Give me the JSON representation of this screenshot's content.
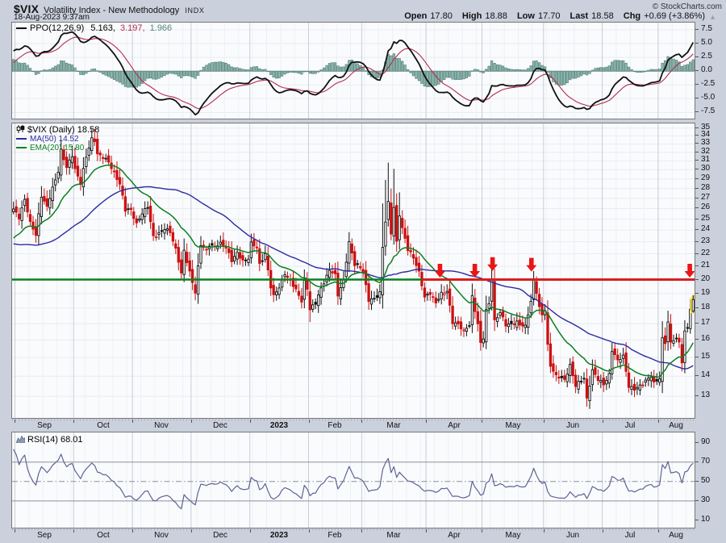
{
  "header": {
    "symbol": "$VIX",
    "name": "Volatility Index - New Methodology",
    "exchange": "INDX",
    "datetime": "18-Aug-2023 9:37am",
    "copyright": "© StockCharts.com",
    "quote": {
      "open_label": "Open",
      "open": "17.80",
      "high_label": "High",
      "high": "18.88",
      "low_label": "Low",
      "low": "17.70",
      "last_label": "Last",
      "last": "18.58",
      "chg_label": "Chg",
      "chg": "+0.69 (+3.86%)",
      "direction_icon": "▲"
    }
  },
  "panels": {
    "ppo": {
      "label": "PPO(12,26,9)",
      "values": [
        "5.163,",
        "3.197,",
        "1.966"
      ]
    },
    "main": {
      "legend1": "$VIX (Daily) 18.58",
      "legend2": "MA(50) 14.52",
      "legend3": "EMA(20) 15.80"
    },
    "rsi": {
      "legend": "RSI(14) 68.01"
    }
  },
  "colors": {
    "background": "#cad0dc",
    "plot_bg": "#fafbfd",
    "grid_minor": "#eef0f5",
    "grid_month": "#c9cdd9",
    "grid_h": "#e9ebf1",
    "up_candle": "#111111",
    "down_candle": "#cc1111",
    "candle_fill": "#ffffff",
    "ma50": "#2b2ba0",
    "ema20": "#0b8020",
    "support_line": "#0b8020",
    "resistance_line": "#d81f1f",
    "arrow": "#ea1515",
    "ppo_line": "#111111",
    "ppo_signal": "#b52d4d",
    "ppo_hist_fill": "#8fb5ad",
    "ppo_hist_stroke": "#55857c",
    "rsi_line": "#5f6394",
    "level_line": "#8a8f9a",
    "zero_line": "#9aa0ac",
    "tick_mark": "#555555",
    "highlight": "#ffe34d",
    "chg_triangle": "#97a3b4"
  },
  "chart_data": {
    "type": "candlestick",
    "title": "$VIX (Daily)",
    "y_scale": "log",
    "y_top": 35.6,
    "y_bot": 12.0,
    "y_ticks": [
      35,
      34,
      33,
      32,
      31,
      30,
      29,
      28,
      27,
      26,
      25,
      24,
      23,
      22,
      21,
      20,
      19,
      18,
      17,
      16,
      15,
      14,
      13
    ],
    "x_tick_labels": [
      "Sep",
      "Oct",
      "Nov",
      "Dec",
      "2023",
      "Feb",
      "Mar",
      "Apr",
      "May",
      "Jun",
      "Jul",
      "Aug"
    ],
    "year_bold_index": 4,
    "n_days": 244,
    "month_start_days": [
      1,
      22,
      43,
      64,
      85,
      106,
      125,
      148,
      168,
      190,
      211,
      231
    ],
    "price": {
      "pre_waypoints": [
        [
          -50,
          27.5
        ],
        [
          -40,
          24.0
        ],
        [
          -30,
          21.8
        ],
        [
          -22,
          19.7
        ],
        [
          -15,
          20.9
        ],
        [
          -8,
          23.0
        ],
        [
          -3,
          24.2
        ],
        [
          -1,
          25.6
        ]
      ],
      "close_waypoints": [
        [
          0,
          25.9
        ],
        [
          2,
          25.2
        ],
        [
          4,
          26.9
        ],
        [
          6,
          24.6
        ],
        [
          8,
          23.6
        ],
        [
          10,
          27.3
        ],
        [
          12,
          26.1
        ],
        [
          14,
          28.0
        ],
        [
          16,
          29.9
        ],
        [
          17,
          32.3
        ],
        [
          19,
          30.2
        ],
        [
          21,
          31.6
        ],
        [
          22,
          30.1
        ],
        [
          24,
          28.6
        ],
        [
          26,
          31.4
        ],
        [
          28,
          33.6
        ],
        [
          29,
          33.5
        ],
        [
          30,
          31.9
        ],
        [
          32,
          31.4
        ],
        [
          34,
          30.8
        ],
        [
          36,
          29.7
        ],
        [
          38,
          28.5
        ],
        [
          40,
          25.8
        ],
        [
          42,
          25.9
        ],
        [
          44,
          24.6
        ],
        [
          46,
          25.5
        ],
        [
          48,
          26.1
        ],
        [
          50,
          23.5
        ],
        [
          52,
          23.7
        ],
        [
          54,
          24.1
        ],
        [
          56,
          23.9
        ],
        [
          58,
          22.4
        ],
        [
          60,
          20.4
        ],
        [
          61,
          22.2
        ],
        [
          63,
          20.6
        ],
        [
          65,
          19.1
        ],
        [
          67,
          22.7
        ],
        [
          69,
          22.3
        ],
        [
          70,
          22.8
        ],
        [
          72,
          22.6
        ],
        [
          74,
          22.8
        ],
        [
          76,
          22.6
        ],
        [
          78,
          21.5
        ],
        [
          80,
          22.0
        ],
        [
          82,
          21.4
        ],
        [
          84,
          21.7
        ],
        [
          85,
          22.9
        ],
        [
          87,
          22.5
        ],
        [
          88,
          21.1
        ],
        [
          90,
          22.0
        ],
        [
          92,
          19.5
        ],
        [
          93,
          18.8
        ],
        [
          95,
          19.4
        ],
        [
          97,
          20.5
        ],
        [
          99,
          19.9
        ],
        [
          101,
          19.2
        ],
        [
          103,
          18.5
        ],
        [
          104,
          19.9
        ],
        [
          105,
          19.4
        ],
        [
          106,
          17.9
        ],
        [
          108,
          18.3
        ],
        [
          110,
          19.4
        ],
        [
          113,
          20.7
        ],
        [
          115,
          20.3
        ],
        [
          116,
          18.9
        ],
        [
          118,
          20.0
        ],
        [
          120,
          22.9
        ],
        [
          122,
          21.1
        ],
        [
          124,
          21.0
        ],
        [
          125,
          20.6
        ],
        [
          127,
          18.5
        ],
        [
          129,
          18.6
        ],
        [
          131,
          19.1
        ],
        [
          132,
          22.6
        ],
        [
          133,
          24.8
        ],
        [
          134,
          26.5
        ],
        [
          135,
          23.7
        ],
        [
          136,
          26.1
        ],
        [
          137,
          23.0
        ],
        [
          138,
          25.5
        ],
        [
          139,
          24.2
        ],
        [
          141,
          22.3
        ],
        [
          143,
          21.7
        ],
        [
          145,
          20.6
        ],
        [
          147,
          18.7
        ],
        [
          149,
          19.0
        ],
        [
          151,
          18.4
        ],
        [
          153,
          19.0
        ],
        [
          155,
          19.1
        ],
        [
          157,
          17.1
        ],
        [
          159,
          17.0
        ],
        [
          161,
          16.5
        ],
        [
          163,
          16.9
        ],
        [
          164,
          18.8
        ],
        [
          166,
          17.0
        ],
        [
          167,
          15.8
        ],
        [
          168,
          16.1
        ],
        [
          169,
          17.8
        ],
        [
          170,
          18.3
        ],
        [
          171,
          20.1
        ],
        [
          172,
          17.2
        ],
        [
          174,
          17.7
        ],
        [
          176,
          16.9
        ],
        [
          178,
          17.0
        ],
        [
          180,
          17.1
        ],
        [
          181,
          16.9
        ],
        [
          183,
          16.8
        ],
        [
          185,
          18.5
        ],
        [
          186,
          20.0
        ],
        [
          187,
          19.1
        ],
        [
          188,
          18.0
        ],
        [
          189,
          17.5
        ],
        [
          190,
          17.9
        ],
        [
          191,
          15.7
        ],
        [
          192,
          14.6
        ],
        [
          194,
          14.0
        ],
        [
          197,
          13.8
        ],
        [
          199,
          14.6
        ],
        [
          201,
          13.5
        ],
        [
          204,
          13.9
        ],
        [
          205,
          12.9
        ],
        [
          207,
          14.3
        ],
        [
          209,
          13.8
        ],
        [
          211,
          13.6
        ],
        [
          213,
          14.1
        ],
        [
          214,
          15.4
        ],
        [
          216,
          14.8
        ],
        [
          218,
          15.1
        ],
        [
          220,
          13.5
        ],
        [
          222,
          13.3
        ],
        [
          224,
          13.5
        ],
        [
          226,
          13.8
        ],
        [
          228,
          14.0
        ],
        [
          229,
          13.6
        ],
        [
          231,
          13.9
        ],
        [
          232,
          16.1
        ],
        [
          233,
          15.9
        ],
        [
          234,
          17.1
        ],
        [
          235,
          15.8
        ],
        [
          236,
          16.0
        ],
        [
          237,
          16.0
        ],
        [
          238,
          15.9
        ],
        [
          239,
          14.8
        ],
        [
          240,
          16.5
        ],
        [
          241,
          16.8
        ],
        [
          242,
          17.9
        ],
        [
          243,
          18.58
        ]
      ],
      "high_overrides": [
        [
          17,
          33.2
        ],
        [
          21,
          32.8
        ],
        [
          28,
          34.5
        ],
        [
          29,
          34.9
        ],
        [
          132,
          26.5
        ],
        [
          133,
          28.9
        ],
        [
          134,
          30.8
        ],
        [
          135,
          28.0
        ],
        [
          136,
          30.1
        ],
        [
          137,
          26.8
        ],
        [
          138,
          27.6
        ],
        [
          171,
          21.3
        ],
        [
          242,
          18.3
        ]
      ],
      "low_overrides": [
        [
          65,
          18.9
        ],
        [
          106,
          17.1
        ],
        [
          157,
          16.8
        ],
        [
          205,
          12.7
        ],
        [
          239,
          14.5
        ]
      ],
      "last_ohlc": {
        "open": 17.8,
        "high": 18.88,
        "low": 17.7,
        "close": 18.58
      }
    },
    "overlays": [
      {
        "name": "MA(50)",
        "type": "sma",
        "period": 50,
        "last": 14.52
      },
      {
        "name": "EMA(20)",
        "type": "ema",
        "period": 20,
        "last": 15.8
      }
    ],
    "hlines": [
      {
        "value": 20,
        "x_from": 0.0,
        "x_to": 0.601,
        "color_key": "support_line"
      },
      {
        "value": 20,
        "x_from": 0.601,
        "x_to": 1.0,
        "color_key": "resistance_line"
      }
    ],
    "arrows": [
      {
        "x_frac": 0.627,
        "tip_value": 20.15
      },
      {
        "x_frac": 0.678,
        "tip_value": 20.15
      },
      {
        "x_frac": 0.704,
        "tip_value": 20.65
      },
      {
        "x_frac": 0.761,
        "tip_value": 20.6
      },
      {
        "x_frac": 0.993,
        "tip_value": 20.15
      }
    ],
    "indicators": {
      "ppo": {
        "label": "PPO(12,26,9)",
        "params": [
          12,
          26,
          9
        ],
        "last_values": [
          5.163,
          3.197,
          1.966
        ],
        "y_ticks": [
          7.5,
          5.0,
          2.5,
          0.0,
          -2.5,
          -5.0,
          -7.5
        ]
      },
      "rsi": {
        "label": "RSI(14)",
        "period": 14,
        "last": 68.01,
        "y_ticks": [
          90,
          70,
          50,
          30,
          10
        ],
        "levels": {
          "upper": 70,
          "mid": 50,
          "lower": 30
        }
      }
    }
  }
}
